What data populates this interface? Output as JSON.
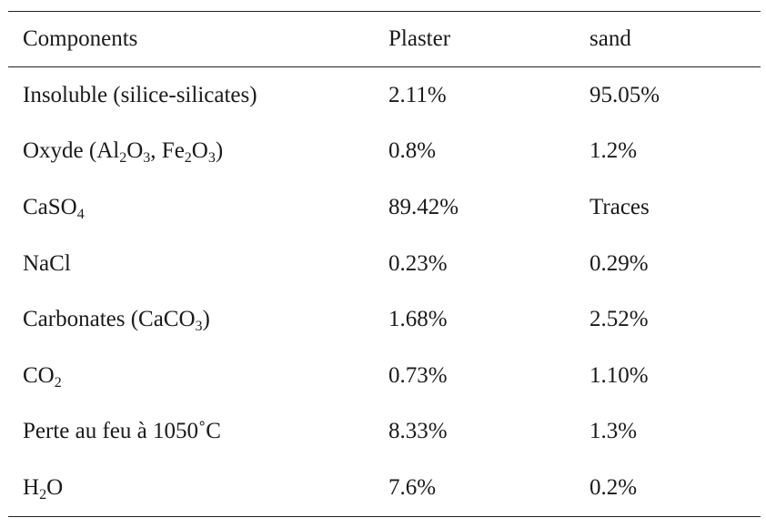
{
  "table": {
    "headers": [
      "Components",
      "Plaster",
      "sand"
    ],
    "rows": [
      {
        "component": [
          {
            "t": "Insoluble (silice-silicates)"
          }
        ],
        "plaster": "2.11%",
        "sand": "95.05%"
      },
      {
        "component": [
          {
            "t": "Oxyde (Al"
          },
          {
            "s": "2"
          },
          {
            "t": "O"
          },
          {
            "s": "3"
          },
          {
            "t": ", Fe"
          },
          {
            "s": "2"
          },
          {
            "t": "O"
          },
          {
            "s": "3"
          },
          {
            "t": ")"
          }
        ],
        "plaster": "0.8%",
        "sand": "1.2%"
      },
      {
        "component": [
          {
            "t": "CaSO"
          },
          {
            "s": "4"
          }
        ],
        "plaster": "89.42%",
        "sand": "Traces"
      },
      {
        "component": [
          {
            "t": "NaCl"
          }
        ],
        "plaster": "0.23%",
        "sand": "0.29%"
      },
      {
        "component": [
          {
            "t": "Carbonates (CaCO"
          },
          {
            "s": "3"
          },
          {
            "t": ")"
          }
        ],
        "plaster": "1.68%",
        "sand": "2.52%"
      },
      {
        "component": [
          {
            "t": "CO"
          },
          {
            "s": "2"
          }
        ],
        "plaster": "0.73%",
        "sand": "1.10%"
      },
      {
        "component": [
          {
            "t": "Perte au feu à 1050˚C"
          }
        ],
        "plaster": "8.33%",
        "sand": "1.3%"
      },
      {
        "component": [
          {
            "t": "H"
          },
          {
            "s": "2"
          },
          {
            "t": "O"
          }
        ],
        "plaster": "7.6%",
        "sand": "0.2%"
      }
    ]
  }
}
